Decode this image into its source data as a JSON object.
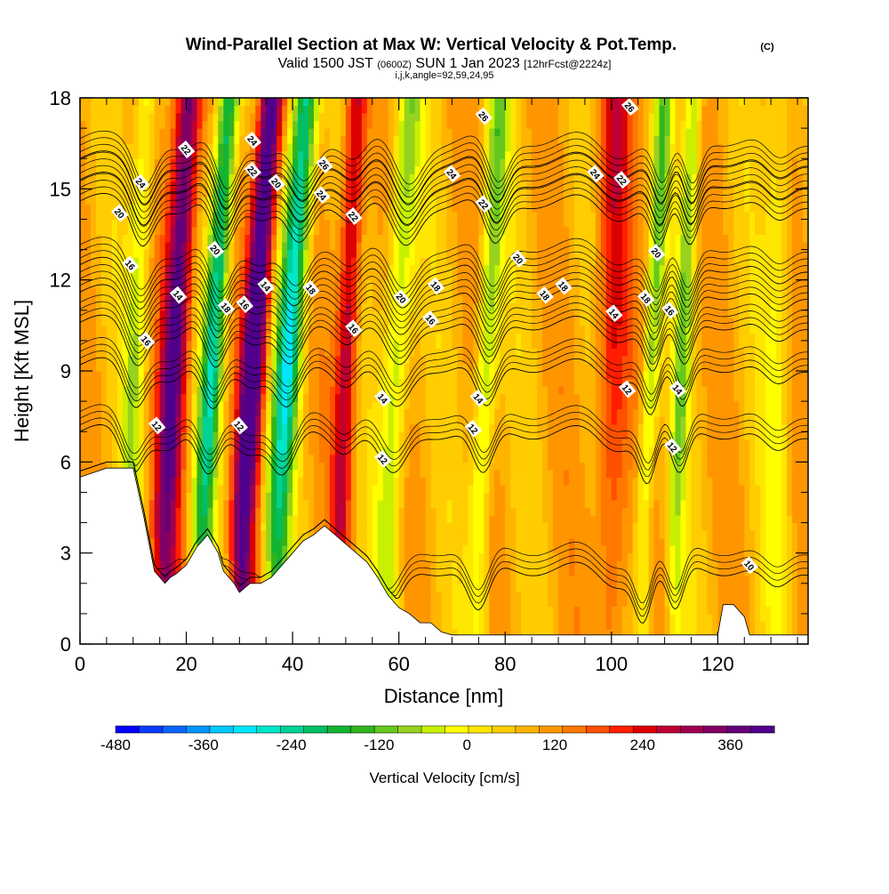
{
  "chart_data": {
    "type": "heatmap",
    "title": "Wind-Parallel Section at Max W: Vertical Velocity & Pot.Temp.",
    "title_mark": "(C)",
    "subtitle_parts": [
      "Valid 1500 JST",
      "(0600Z)",
      "SUN 1 Jan 2023",
      "[12hrFcst@2224z]"
    ],
    "subtitle2": "i,j,k,angle=92,59,24,95",
    "xlabel": "Distance [nm]",
    "ylabel": "Height [Kft MSL]",
    "xlim": [
      0,
      137
    ],
    "ylim": [
      0,
      18
    ],
    "x_ticks": [
      0,
      20,
      40,
      60,
      80,
      100,
      120
    ],
    "y_ticks": [
      0,
      3,
      6,
      9,
      12,
      15,
      18
    ],
    "x_tick_labels": [
      "0",
      "20",
      "40",
      "60",
      "80",
      "100",
      "120"
    ],
    "y_tick_labels": [
      "0",
      "3",
      "6",
      "9",
      "12",
      "15",
      "18"
    ],
    "colorbar": {
      "label": "Vertical Velocity [cm/s]",
      "min": -480,
      "max": 420,
      "step": 30,
      "tick_values": [
        -480,
        -360,
        -240,
        -120,
        0,
        120,
        240,
        360
      ],
      "tick_labels": [
        "-480",
        "-360",
        "-240",
        "-120",
        "0",
        "120",
        "240",
        "360"
      ],
      "colors": [
        "#0000ff",
        "#0a3cff",
        "#0a64ff",
        "#0096ff",
        "#00c8ff",
        "#00e6ff",
        "#00e6c8",
        "#00d296",
        "#00be64",
        "#14b432",
        "#32b41e",
        "#64c81e",
        "#96d21e",
        "#c8f000",
        "#ffff00",
        "#ffe600",
        "#ffcd00",
        "#ffb400",
        "#ff9600",
        "#ff7800",
        "#ff5000",
        "#ff1e00",
        "#dc0000",
        "#be0032",
        "#a00050",
        "#820064",
        "#640078",
        "#50008c"
      ]
    },
    "terrain_profile": {
      "x": [
        0,
        5,
        10,
        11,
        12,
        13,
        14,
        15,
        16,
        17,
        18,
        20,
        22,
        24,
        26,
        27,
        28,
        29,
        30,
        32,
        34,
        36,
        38,
        40,
        42,
        44,
        46,
        48,
        50,
        52,
        54,
        56,
        58,
        60,
        62,
        64,
        66,
        68,
        70,
        75,
        80,
        90,
        100,
        110,
        120,
        121,
        123,
        125,
        126,
        137
      ],
      "height_kft": [
        5.5,
        5.8,
        5.8,
        5.0,
        4.2,
        3.3,
        2.4,
        2.2,
        2.0,
        2.2,
        2.3,
        2.6,
        3.2,
        3.6,
        3.0,
        2.4,
        2.2,
        2.0,
        1.7,
        2.0,
        2.0,
        2.2,
        2.6,
        3.0,
        3.4,
        3.6,
        3.9,
        3.6,
        3.3,
        3.0,
        2.7,
        2.2,
        1.6,
        1.2,
        1.0,
        0.7,
        0.7,
        0.4,
        0.3,
        0.3,
        0.3,
        0.3,
        0.3,
        0.3,
        0.3,
        1.3,
        1.3,
        0.9,
        0.3,
        0.3
      ]
    },
    "vertical_velocity_bands": [
      {
        "x": 9,
        "w": 2.0,
        "tilt": 3.5,
        "value_cm_s": -120
      },
      {
        "x": 16,
        "w": 2.5,
        "tilt": 4.5,
        "value_cm_s": 300
      },
      {
        "x": 23,
        "w": 2.0,
        "tilt": 5.0,
        "value_cm_s": -300
      },
      {
        "x": 30.5,
        "w": 2.2,
        "tilt": 5.5,
        "value_cm_s": 380
      },
      {
        "x": 37,
        "w": 2.4,
        "tilt": 5.5,
        "value_cm_s": -330
      },
      {
        "x": 49,
        "w": 2.0,
        "tilt": 3.0,
        "value_cm_s": 200
      },
      {
        "x": 58,
        "w": 2.6,
        "tilt": 4.0,
        "value_cm_s": -150
      },
      {
        "x": 75,
        "w": 2.0,
        "tilt": 4.0,
        "value_cm_s": -160
      },
      {
        "x": 100,
        "w": 3.0,
        "tilt": 0.5,
        "value_cm_s": 150
      },
      {
        "x": 106,
        "w": 1.6,
        "tilt": 4.0,
        "value_cm_s": -160
      },
      {
        "x": 112,
        "w": 1.6,
        "tilt": 3.5,
        "value_cm_s": -150
      },
      {
        "x": 131,
        "w": 2.5,
        "tilt": 0.5,
        "value_cm_s": -80
      }
    ],
    "potential_temperature_contours": [
      {
        "label": "10",
        "base_kft": 2.5
      },
      {
        "label": "12",
        "base_kft": 7.0
      },
      {
        "label": "14",
        "base_kft": 9.2
      },
      {
        "label": "16",
        "base_kft": 10.6
      },
      {
        "label": "18",
        "base_kft": 11.6
      },
      {
        "label": "20",
        "base_kft": 12.5
      },
      {
        "label": "22",
        "base_kft": 14.6
      },
      {
        "label": "24",
        "base_kft": 15.3
      },
      {
        "label": "26",
        "base_kft": 16.0
      }
    ],
    "contour_labels": [
      {
        "text": "22",
        "x": 20,
        "y": 16.3
      },
      {
        "text": "24",
        "x": 11.5,
        "y": 15.2
      },
      {
        "text": "20",
        "x": 7.5,
        "y": 14.2
      },
      {
        "text": "16",
        "x": 9.5,
        "y": 12.5
      },
      {
        "text": "14",
        "x": 18.5,
        "y": 11.5
      },
      {
        "text": "16",
        "x": 12.5,
        "y": 10.0
      },
      {
        "text": "12",
        "x": 14.5,
        "y": 7.2
      },
      {
        "text": "20",
        "x": 25.5,
        "y": 13.0
      },
      {
        "text": "18",
        "x": 27.5,
        "y": 11.1
      },
      {
        "text": "16",
        "x": 31,
        "y": 11.2
      },
      {
        "text": "14",
        "x": 35,
        "y": 11.8
      },
      {
        "text": "12",
        "x": 30,
        "y": 7.2
      },
      {
        "text": "24",
        "x": 32.5,
        "y": 16.6
      },
      {
        "text": "22",
        "x": 32.5,
        "y": 15.6
      },
      {
        "text": "20",
        "x": 37,
        "y": 15.2
      },
      {
        "text": "26",
        "x": 46,
        "y": 15.8
      },
      {
        "text": "24",
        "x": 45.5,
        "y": 14.8
      },
      {
        "text": "22",
        "x": 51.5,
        "y": 14.1
      },
      {
        "text": "18",
        "x": 43.5,
        "y": 11.7
      },
      {
        "text": "16",
        "x": 51.5,
        "y": 10.4
      },
      {
        "text": "14",
        "x": 57,
        "y": 8.1
      },
      {
        "text": "12",
        "x": 57,
        "y": 6.1
      },
      {
        "text": "20",
        "x": 60.5,
        "y": 11.4
      },
      {
        "text": "18",
        "x": 67,
        "y": 11.8
      },
      {
        "text": "16",
        "x": 66,
        "y": 10.7
      },
      {
        "text": "24",
        "x": 70,
        "y": 15.5
      },
      {
        "text": "26",
        "x": 76,
        "y": 17.4
      },
      {
        "text": "22",
        "x": 76,
        "y": 14.5
      },
      {
        "text": "14",
        "x": 75,
        "y": 8.1
      },
      {
        "text": "12",
        "x": 74,
        "y": 7.1
      },
      {
        "text": "20",
        "x": 82.5,
        "y": 12.7
      },
      {
        "text": "18",
        "x": 87.5,
        "y": 11.5
      },
      {
        "text": "18",
        "x": 91,
        "y": 11.8
      },
      {
        "text": "24",
        "x": 97,
        "y": 15.5
      },
      {
        "text": "22",
        "x": 102,
        "y": 15.3
      },
      {
        "text": "26",
        "x": 103.5,
        "y": 17.7
      },
      {
        "text": "14",
        "x": 100.5,
        "y": 10.9
      },
      {
        "text": "12",
        "x": 103,
        "y": 8.4
      },
      {
        "text": "20",
        "x": 108.5,
        "y": 12.9
      },
      {
        "text": "18",
        "x": 106.5,
        "y": 11.4
      },
      {
        "text": "16",
        "x": 111,
        "y": 11.0
      },
      {
        "text": "14",
        "x": 112.5,
        "y": 8.4
      },
      {
        "text": "12",
        "x": 111.5,
        "y": 6.5
      },
      {
        "text": "10",
        "x": 126,
        "y": 2.6
      }
    ]
  }
}
